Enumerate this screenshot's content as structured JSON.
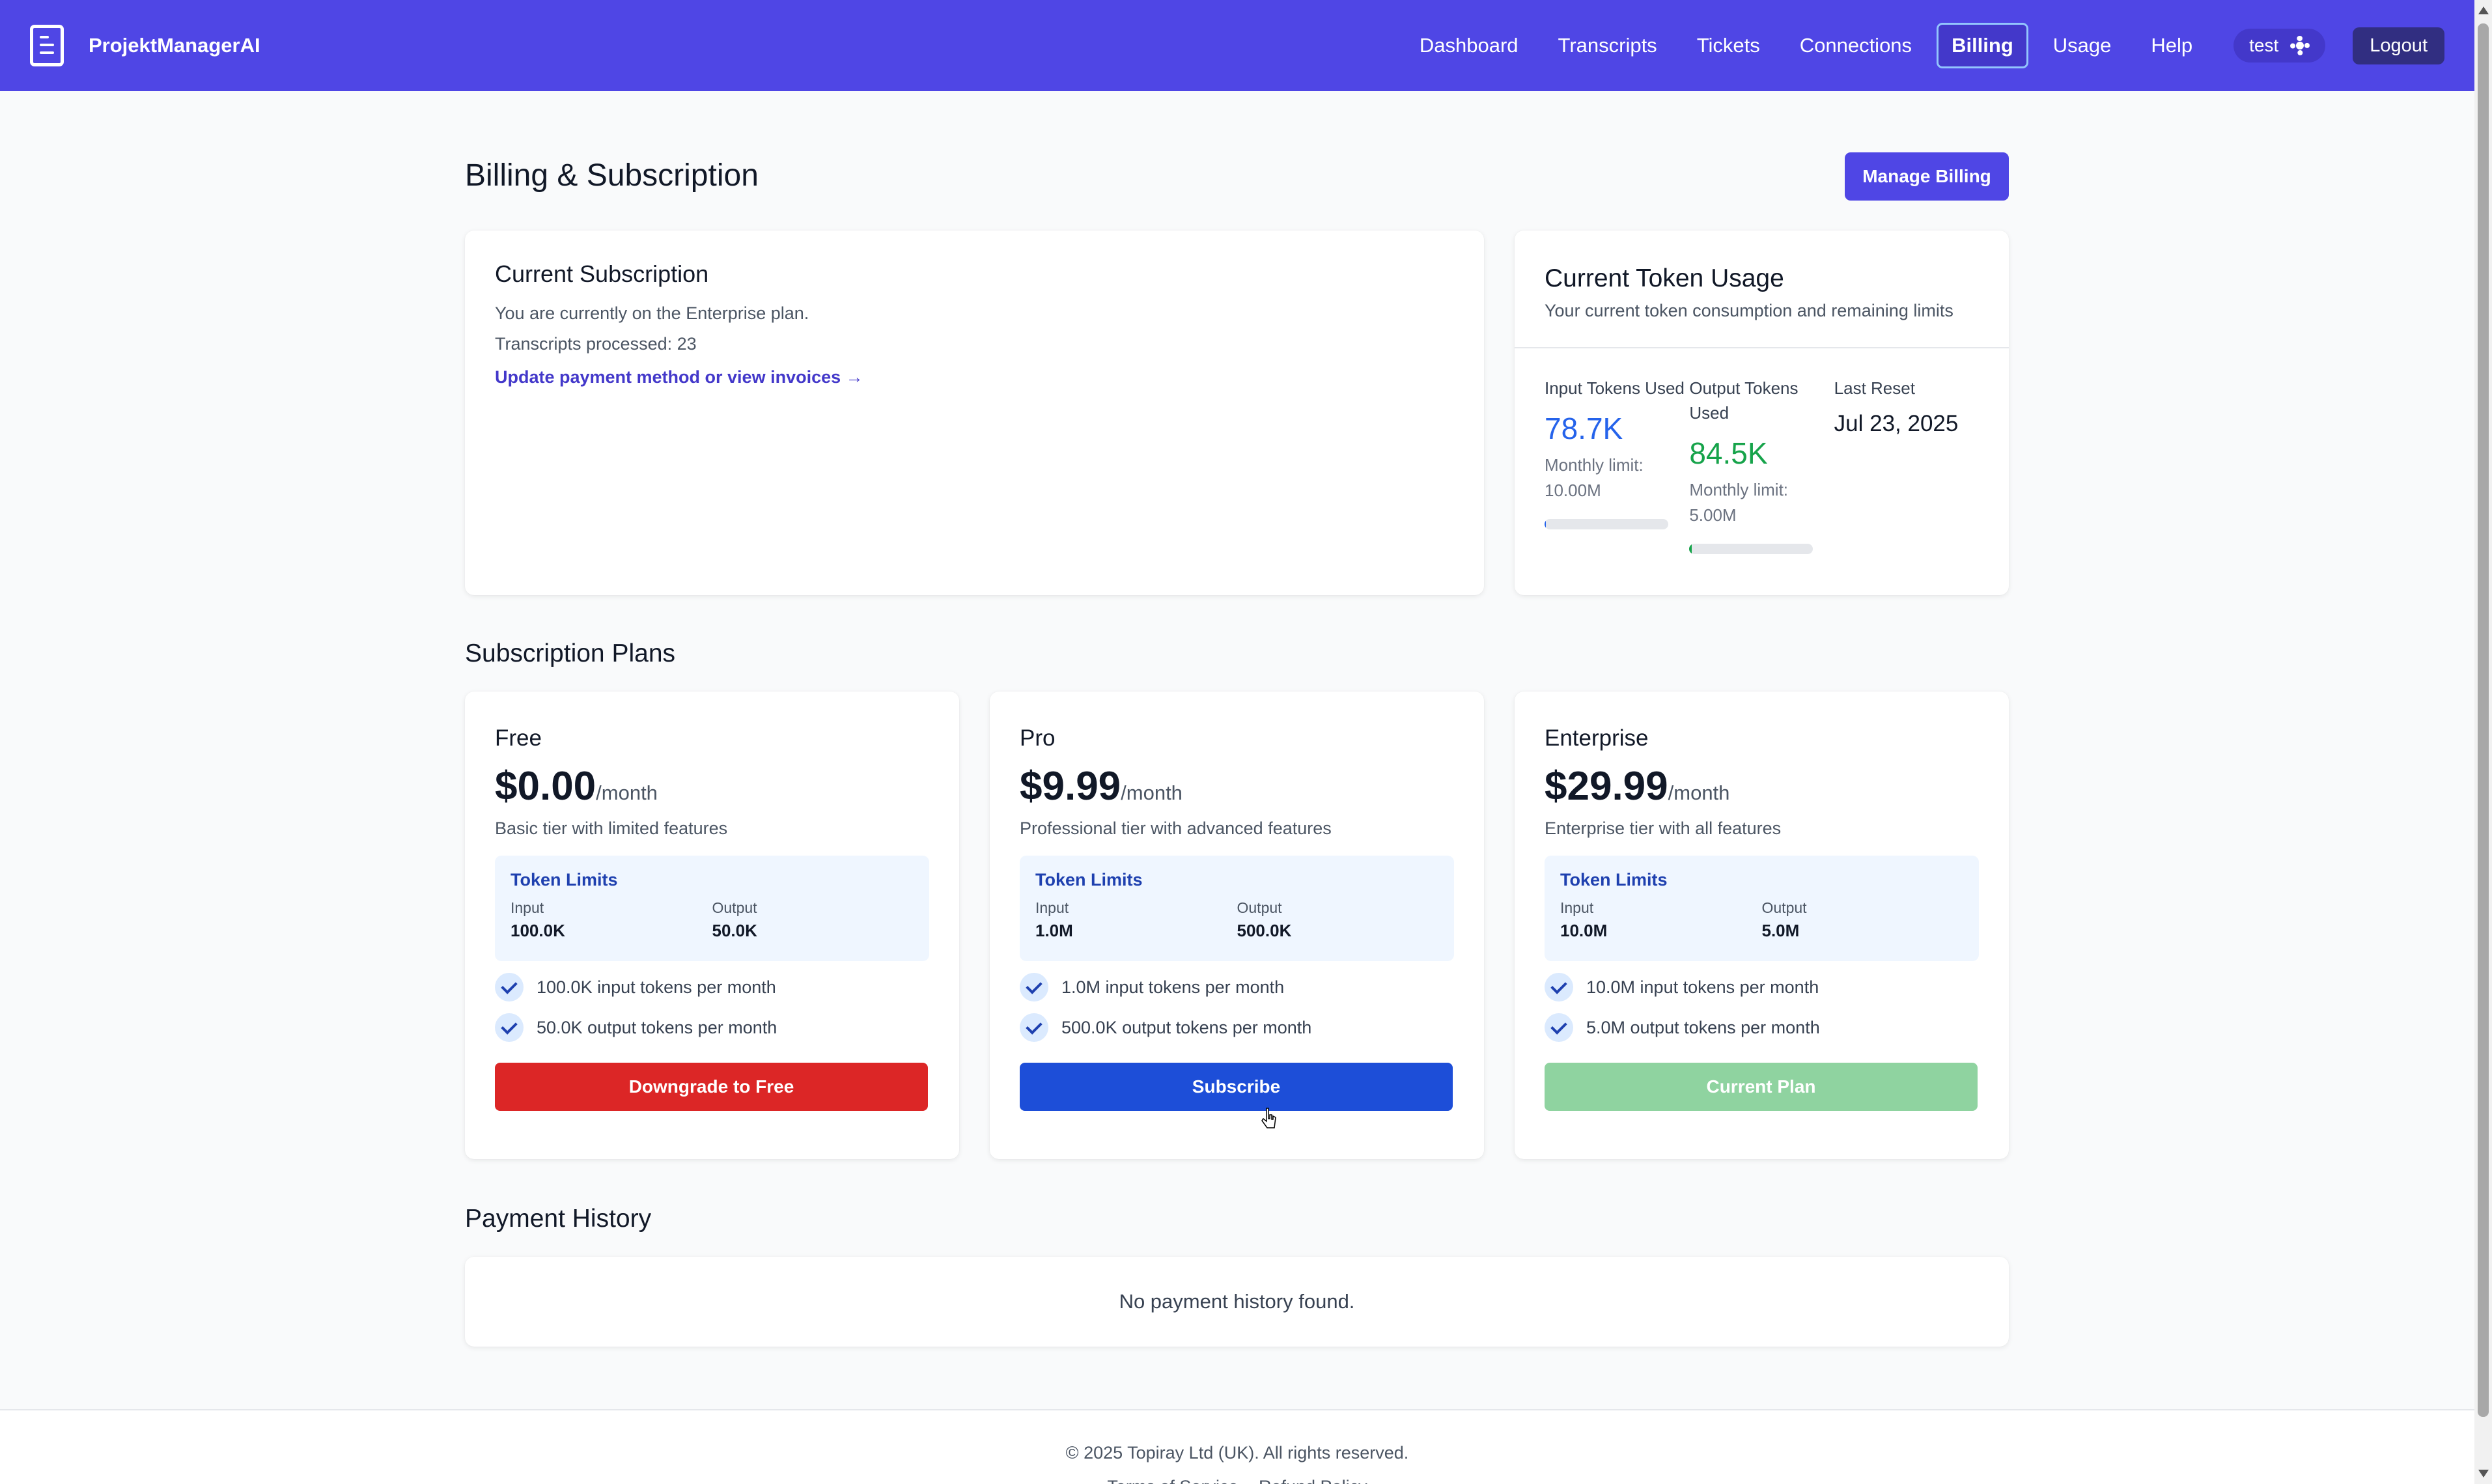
{
  "navbar": {
    "brand": "ProjektManagerAI",
    "links": [
      "Dashboard",
      "Transcripts",
      "Tickets",
      "Connections",
      "Billing",
      "Usage",
      "Help"
    ],
    "active_link": "Billing",
    "user": "test",
    "logout": "Logout"
  },
  "page": {
    "title": "Billing & Subscription",
    "manage_billing": "Manage Billing"
  },
  "subscription": {
    "title": "Current Subscription",
    "plan_line": "You are currently on the Enterprise plan.",
    "transcripts_line": "Transcripts processed: 23",
    "link": "Update payment method or view invoices →"
  },
  "usage": {
    "title": "Current Token Usage",
    "subtitle": "Your current token consumption and remaining limits",
    "input": {
      "label": "Input Tokens Used",
      "value": "78.7K",
      "limit": "Monthly limit: 10.00M",
      "fraction": 0.0079,
      "color": "#2563eb"
    },
    "output": {
      "label": "Output Tokens Used",
      "value": "84.5K",
      "limit": "Monthly limit: 5.00M",
      "fraction": 0.0169,
      "color": "#16a34a"
    },
    "reset": {
      "label": "Last Reset",
      "value": "Jul 23, 2025"
    }
  },
  "plans_title": "Subscription Plans",
  "limits_label": "Token Limits",
  "input_label": "Input",
  "output_label": "Output",
  "plans": [
    {
      "name": "Free",
      "price": "$0.00",
      "period": "/month",
      "description": "Basic tier with limited features",
      "input_limit": "100.0K",
      "output_limit": "50.0K",
      "features": [
        "100.0K input tokens per month",
        "50.0K output tokens per month"
      ],
      "button": "Downgrade to Free"
    },
    {
      "name": "Pro",
      "price": "$9.99",
      "period": "/month",
      "description": "Professional tier with advanced features",
      "input_limit": "1.0M",
      "output_limit": "500.0K",
      "features": [
        "1.0M input tokens per month",
        "500.0K output tokens per month"
      ],
      "button": "Subscribe"
    },
    {
      "name": "Enterprise",
      "price": "$29.99",
      "period": "/month",
      "description": "Enterprise tier with all features",
      "input_limit": "10.0M",
      "output_limit": "5.0M",
      "features": [
        "10.0M input tokens per month",
        "5.0M output tokens per month"
      ],
      "button": "Current Plan"
    }
  ],
  "payment": {
    "title": "Payment History",
    "empty": "No payment history found."
  },
  "footer": {
    "copyright": "© 2025 Topiray Ltd (UK). All rights reserved.",
    "links": [
      "Terms of Service",
      "Refund Policy"
    ]
  }
}
